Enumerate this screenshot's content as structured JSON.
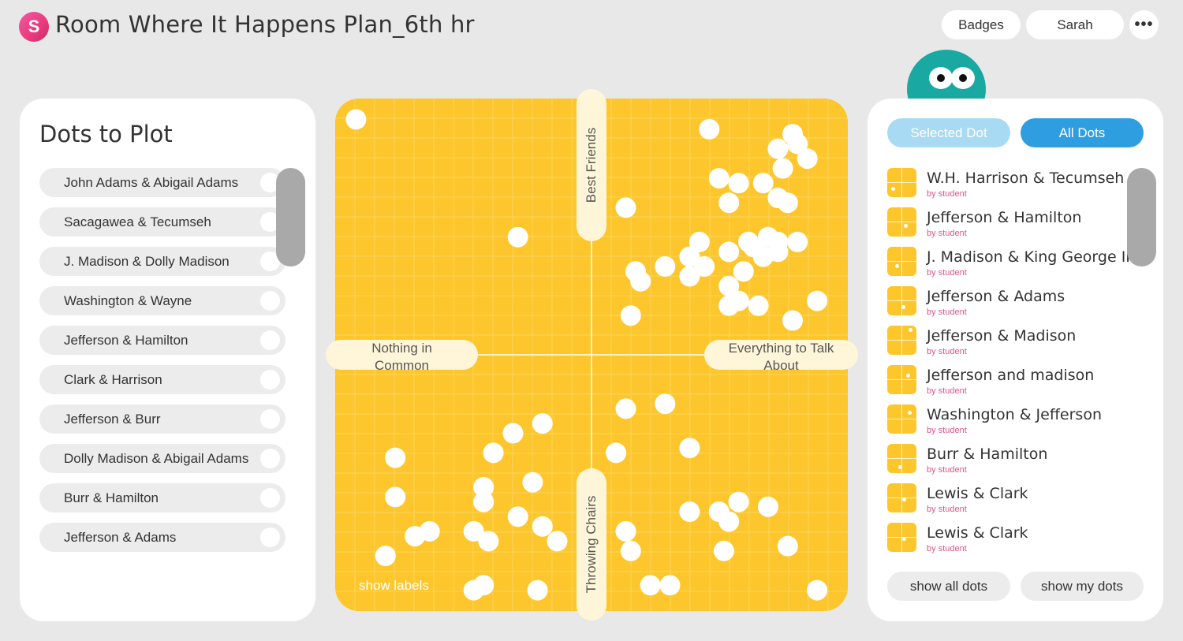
{
  "header": {
    "logo_letter": "S",
    "title": "Room Where It Happens Plan_6th hr",
    "badges_label": "Badges",
    "user_label": "Sarah",
    "more_label": "•••"
  },
  "left_panel": {
    "title": "Dots to Plot",
    "items": [
      "John Adams & Abigail Adams",
      "Sacagawea & Tecumseh",
      "J. Madison & Dolly Madison",
      "Washington & Wayne",
      "Jefferson & Hamilton",
      "Clark & Harrison",
      "Jefferson & Burr",
      "Dolly Madison & Abigail Adams",
      "Burr & Hamilton",
      "Jefferson & Adams"
    ]
  },
  "plot": {
    "label_top": "Best Friends",
    "label_bottom": "Throwing Chairs",
    "label_left": "Nothing in Common",
    "label_right": "Everything to Talk About",
    "show_labels": "show labels",
    "colors": {
      "background": "#fdc62c",
      "grid": "#fdd55e",
      "axis": "#fff3c9",
      "dot": "#ffffff"
    },
    "dots": [
      [
        0.02,
        0.98
      ],
      [
        0.74,
        0.96
      ],
      [
        0.91,
        0.95
      ],
      [
        0.88,
        0.92
      ],
      [
        0.92,
        0.93
      ],
      [
        0.94,
        0.9
      ],
      [
        0.89,
        0.88
      ],
      [
        0.76,
        0.86
      ],
      [
        0.8,
        0.85
      ],
      [
        0.85,
        0.85
      ],
      [
        0.78,
        0.81
      ],
      [
        0.88,
        0.82
      ],
      [
        0.9,
        0.81
      ],
      [
        0.57,
        0.8
      ],
      [
        0.35,
        0.74
      ],
      [
        0.72,
        0.73
      ],
      [
        0.82,
        0.73
      ],
      [
        0.86,
        0.74
      ],
      [
        0.88,
        0.73
      ],
      [
        0.92,
        0.73
      ],
      [
        0.7,
        0.7
      ],
      [
        0.78,
        0.71
      ],
      [
        0.83,
        0.72
      ],
      [
        0.85,
        0.7
      ],
      [
        0.88,
        0.71
      ],
      [
        0.59,
        0.67
      ],
      [
        0.7,
        0.66
      ],
      [
        0.65,
        0.68
      ],
      [
        0.73,
        0.68
      ],
      [
        0.81,
        0.67
      ],
      [
        0.6,
        0.65
      ],
      [
        0.78,
        0.64
      ],
      [
        0.78,
        0.6
      ],
      [
        0.8,
        0.61
      ],
      [
        0.84,
        0.6
      ],
      [
        0.96,
        0.61
      ],
      [
        0.58,
        0.58
      ],
      [
        0.91,
        0.57
      ],
      [
        0.65,
        0.4
      ],
      [
        0.57,
        0.39
      ],
      [
        0.4,
        0.36
      ],
      [
        0.34,
        0.34
      ],
      [
        0.3,
        0.3
      ],
      [
        0.55,
        0.3
      ],
      [
        0.7,
        0.31
      ],
      [
        0.1,
        0.29
      ],
      [
        0.38,
        0.24
      ],
      [
        0.28,
        0.23
      ],
      [
        0.8,
        0.2
      ],
      [
        0.5,
        0.18
      ],
      [
        0.1,
        0.21
      ],
      [
        0.35,
        0.17
      ],
      [
        0.28,
        0.2
      ],
      [
        0.7,
        0.18
      ],
      [
        0.76,
        0.18
      ],
      [
        0.86,
        0.19
      ],
      [
        0.78,
        0.16
      ],
      [
        0.4,
        0.15
      ],
      [
        0.17,
        0.14
      ],
      [
        0.26,
        0.14
      ],
      [
        0.14,
        0.13
      ],
      [
        0.29,
        0.12
      ],
      [
        0.57,
        0.14
      ],
      [
        0.43,
        0.12
      ],
      [
        0.58,
        0.1
      ],
      [
        0.77,
        0.1
      ],
      [
        0.9,
        0.11
      ],
      [
        0.08,
        0.09
      ],
      [
        0.28,
        0.03
      ],
      [
        0.26,
        0.02
      ],
      [
        0.39,
        0.02
      ],
      [
        0.62,
        0.03
      ],
      [
        0.66,
        0.03
      ],
      [
        0.96,
        0.02
      ]
    ]
  },
  "right_panel": {
    "tab_selected": "Selected Dot",
    "tab_all": "All Dots",
    "items": [
      {
        "name": "W.H. Harrison & Tecumseh",
        "by": "by student",
        "mini": [
          0.15,
          0.25
        ]
      },
      {
        "name": "Jefferson & Hamilton",
        "by": "by student",
        "mini": [
          0.65,
          0.35
        ]
      },
      {
        "name": "J. Madison & King George III",
        "by": "by student",
        "mini": [
          0.3,
          0.3
        ]
      },
      {
        "name": "Jefferson & Adams",
        "by": "by student",
        "mini": [
          0.55,
          0.25
        ]
      },
      {
        "name": "Jefferson & Madison",
        "by": "by student",
        "mini": [
          0.85,
          0.9
        ]
      },
      {
        "name": "Jefferson and madison",
        "by": "by student",
        "mini": [
          0.75,
          0.65
        ]
      },
      {
        "name": "Washington & Jefferson",
        "by": "by student",
        "mini": [
          0.8,
          0.75
        ]
      },
      {
        "name": "Burr & Hamilton",
        "by": "by student",
        "mini": [
          0.45,
          0.15
        ]
      },
      {
        "name": "Lewis & Clark",
        "by": "by student",
        "mini": [
          0.6,
          0.45
        ]
      },
      {
        "name": "Lewis & Clark",
        "by": "by student",
        "mini": [
          0.6,
          0.45
        ]
      }
    ],
    "show_all": "show all dots",
    "show_mine": "show my dots"
  }
}
